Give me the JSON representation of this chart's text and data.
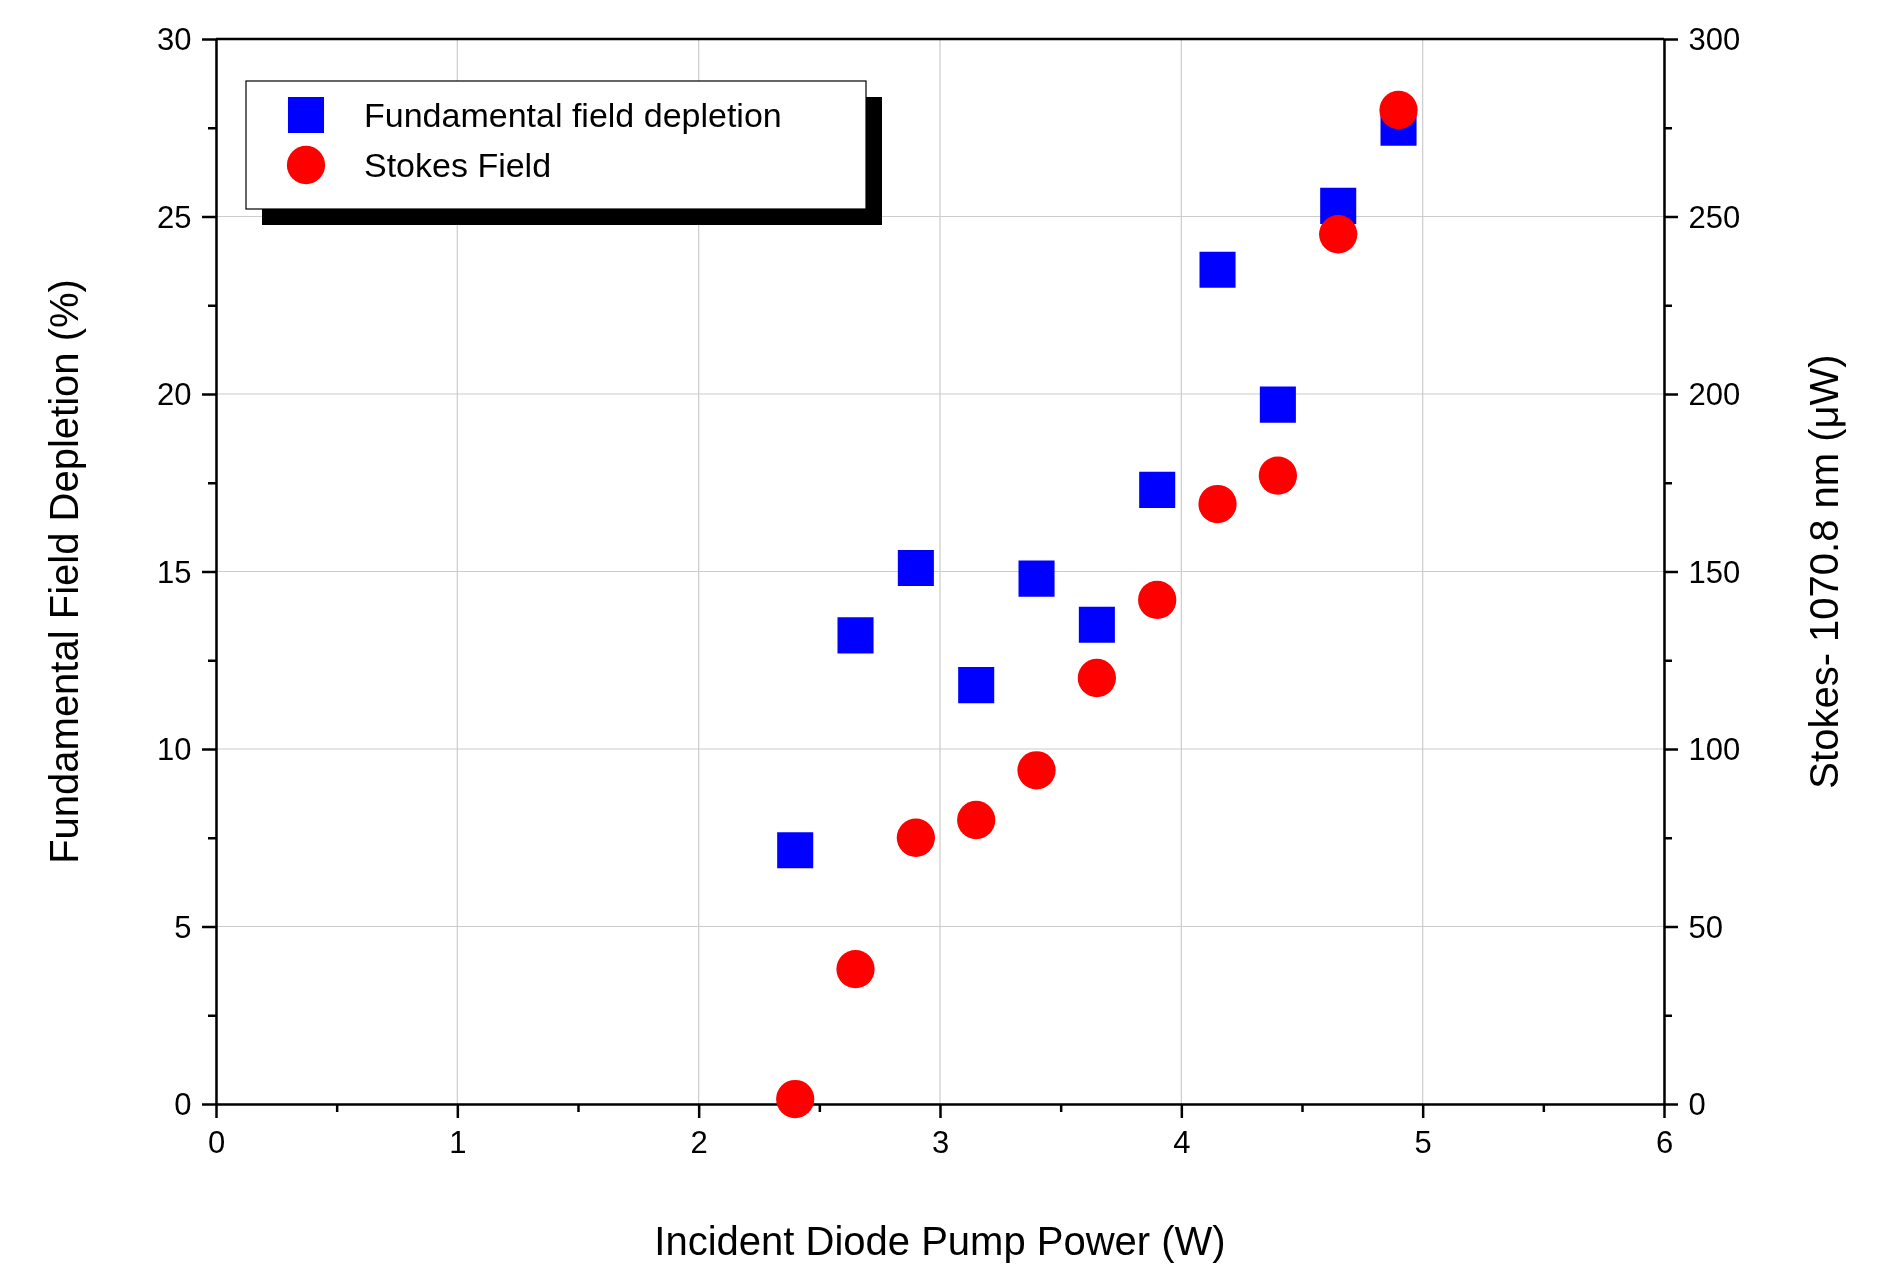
{
  "chart_data": {
    "type": "scatter",
    "xlabel": "Incident Diode Pump Power (W)",
    "ylabel": "Fundamental Field Depletion (%)",
    "y2label": "Stokes- 1070.8 nm (μW)",
    "x": [
      2.4,
      2.65,
      2.9,
      3.15,
      3.4,
      3.65,
      3.9,
      4.15,
      4.4,
      4.65,
      4.9
    ],
    "series": [
      {
        "name": "Fundamental field depletion",
        "color": "#0000ff",
        "marker": "square",
        "values": [
          7.15,
          13.2,
          15.1,
          11.8,
          14.8,
          13.5,
          17.3,
          23.5,
          19.7,
          25.3,
          27.5
        ]
      },
      {
        "name": "Stokes Field",
        "color": "#ff0000",
        "marker": "circle",
        "axis": "y2",
        "values": [
          1.4,
          38,
          75,
          80,
          94,
          120,
          142,
          169,
          177,
          245,
          280
        ]
      }
    ],
    "xlim": [
      0,
      6
    ],
    "xticks": [
      0,
      {
        "value": 0.5,
        "label": null
      },
      1,
      {
        "value": 1.5,
        "label": null
      },
      2,
      {
        "value": 2.5,
        "label": null
      },
      3,
      {
        "value": 3.5,
        "label": null
      },
      4,
      {
        "value": 4.5,
        "label": null
      },
      5,
      {
        "value": 5.5,
        "label": null
      },
      6
    ],
    "ylim": [
      0,
      30
    ],
    "yticks": [
      0,
      {
        "value": 2.5,
        "label": null
      },
      5,
      {
        "value": 7.5,
        "label": null
      },
      10,
      {
        "value": 12.5,
        "label": null
      },
      15,
      {
        "value": 17.5,
        "label": null
      },
      20,
      {
        "value": 22.5,
        "label": null
      },
      25,
      {
        "value": 27.5,
        "label": null
      },
      30
    ],
    "y2lim": [
      0,
      300
    ],
    "y2ticks": [
      0,
      {
        "value": 25,
        "label": null
      },
      50,
      {
        "value": 75,
        "label": null
      },
      100,
      {
        "value": 125,
        "label": null
      },
      150,
      {
        "value": 175,
        "label": null
      },
      200,
      {
        "value": 225,
        "label": null
      },
      250,
      {
        "value": 275,
        "label": null
      },
      300
    ],
    "grid": true,
    "legend": "top left"
  }
}
